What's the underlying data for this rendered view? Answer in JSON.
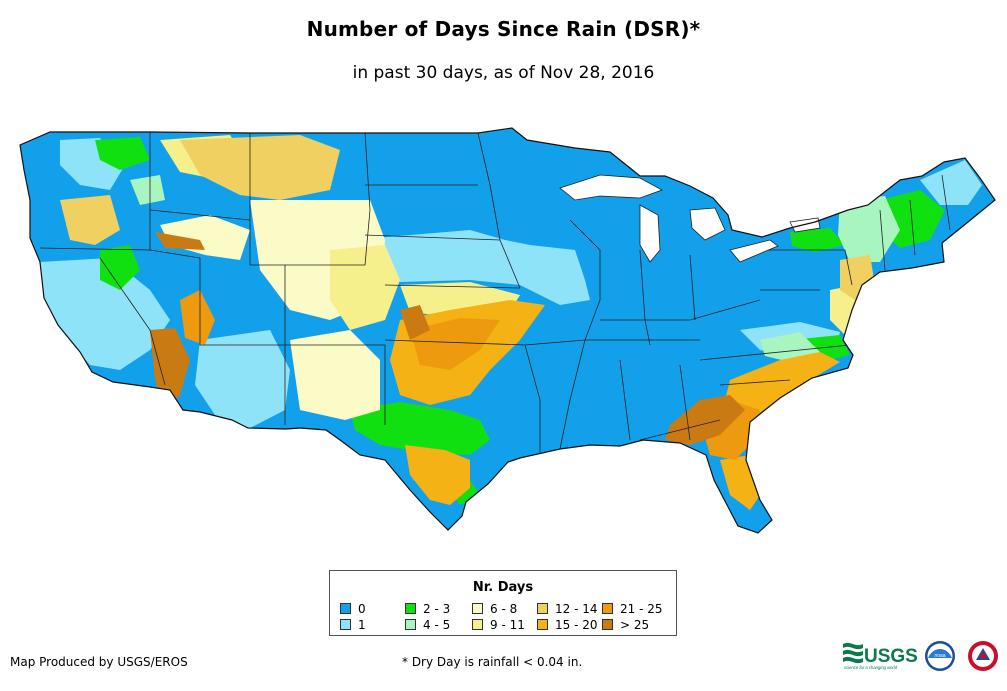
{
  "title": "Number of Days Since Rain (DSR)*",
  "subtitle": "in past 30 days, as of Nov 28, 2016",
  "legend": {
    "title": "Nr. Days",
    "items": [
      {
        "label": "0",
        "color": "#12a0ea"
      },
      {
        "label": "1",
        "color": "#8fe3f8"
      },
      {
        "label": "2 - 3",
        "color": "#10e010"
      },
      {
        "label": "4 - 5",
        "color": "#a8f5c0"
      },
      {
        "label": "6 - 8",
        "color": "#fbfbc8"
      },
      {
        "label": "9 - 11",
        "color": "#f6f08c"
      },
      {
        "label": "12 - 14",
        "color": "#f0d060"
      },
      {
        "label": "15 - 20",
        "color": "#f5b214"
      },
      {
        "label": "21 - 25",
        "color": "#ee9a0e"
      },
      {
        "label": "> 25",
        "color": "#c97a12"
      }
    ]
  },
  "footer": {
    "producer": "Map Produced by USGS/EROS",
    "note": "* Dry Day is rainfall < 0.04 in."
  },
  "logos": {
    "usgs_text": "USGS",
    "usgs_tagline": "science for a changing world",
    "noaa_text": "noaa"
  }
}
